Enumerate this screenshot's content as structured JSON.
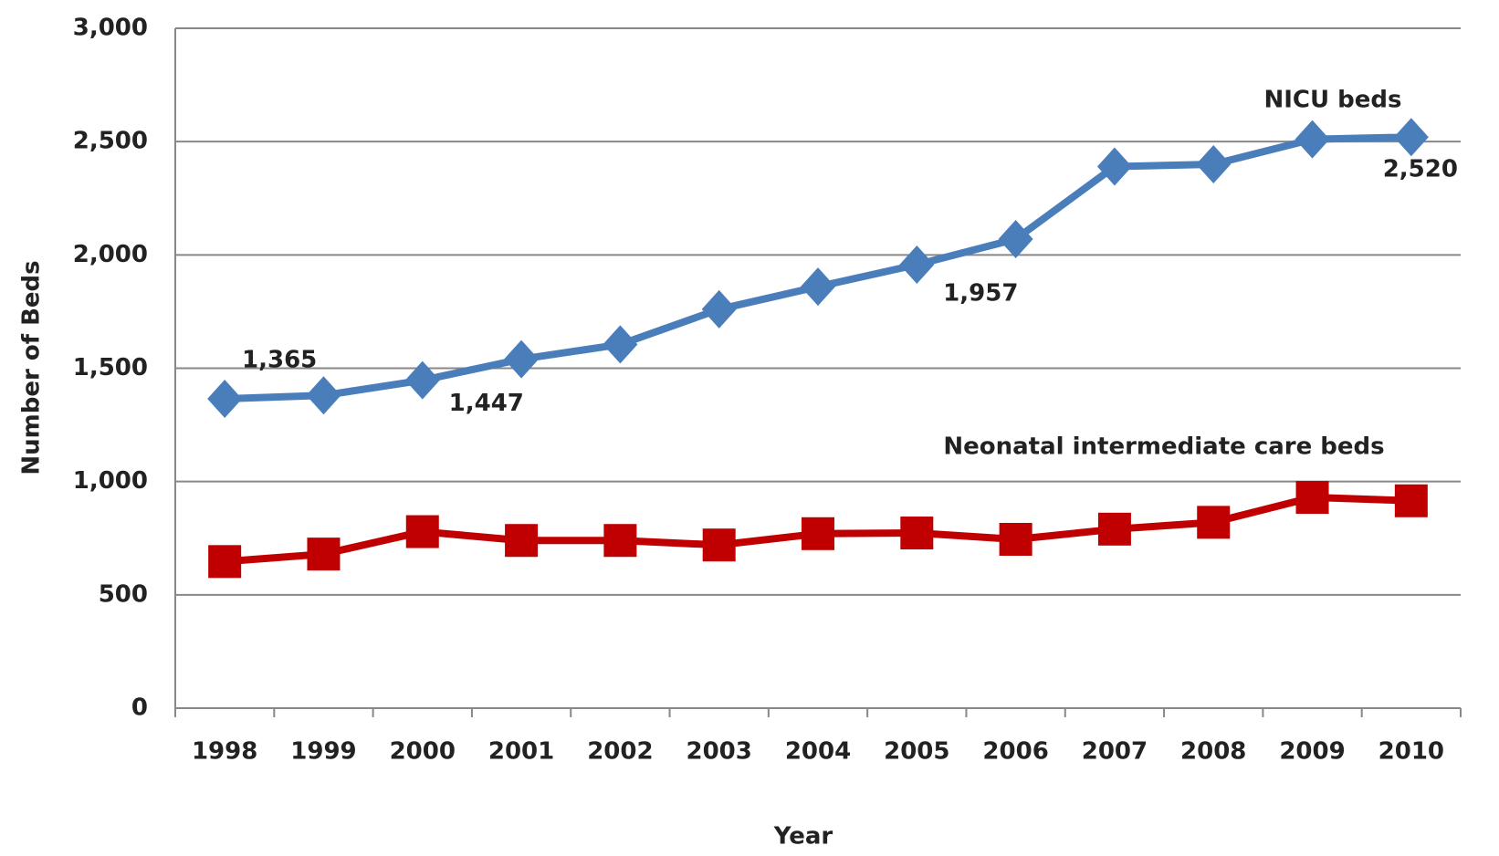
{
  "chart_data": {
    "type": "line",
    "y_label": "Number of Beds",
    "x_label": "Year",
    "categories": [
      "1998",
      "1999",
      "2000",
      "2001",
      "2002",
      "2003",
      "2004",
      "2005",
      "2006",
      "2007",
      "2008",
      "2009",
      "2010"
    ],
    "series": [
      {
        "name": "NICU beds",
        "color": "#4a7ebb",
        "marker": "diamond",
        "values": [
          1365,
          1380,
          1447,
          1540,
          1605,
          1760,
          1860,
          1957,
          2070,
          2390,
          2400,
          2510,
          2520
        ],
        "value_labels": [
          "1,365",
          null,
          "1,447",
          null,
          null,
          null,
          null,
          "1,957",
          null,
          null,
          null,
          null,
          "2,520"
        ]
      },
      {
        "name": "Neonatal intermediate care beds",
        "color": "#c00000",
        "marker": "square",
        "values": [
          647,
          680,
          779,
          740,
          740,
          720,
          770,
          773,
          745,
          790,
          820,
          930,
          915
        ],
        "value_labels": [
          null,
          null,
          null,
          null,
          null,
          null,
          null,
          null,
          null,
          null,
          null,
          null,
          null
        ]
      }
    ],
    "ylim": [
      0,
      3000
    ],
    "yticks": [
      0,
      500,
      {
        "value": 1000,
        "label": "1,000"
      },
      {
        "value": 1500,
        "label": "1,500"
      },
      {
        "value": 2000,
        "label": "2,000"
      },
      {
        "value": 2500,
        "label": "2,500"
      },
      {
        "value": 3000,
        "label": "3,000"
      }
    ],
    "grid": true
  }
}
